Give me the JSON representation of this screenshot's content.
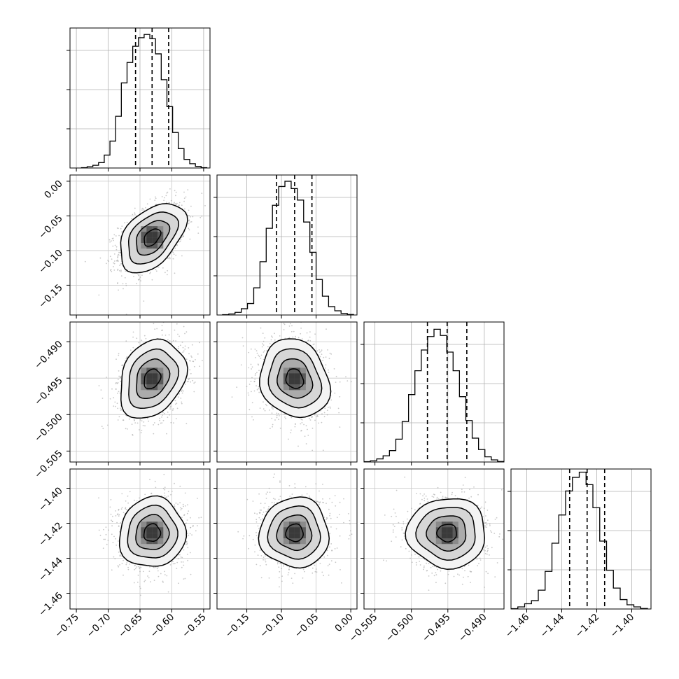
{
  "chart_data": {
    "type": "corner",
    "params": [
      {
        "range": [
          -0.76,
          -0.54
        ],
        "ticks": [
          -0.75,
          -0.7,
          -0.65,
          -0.6,
          -0.55
        ],
        "tick_labels": [
          "−0.75",
          "−0.70",
          "−0.65",
          "−0.60",
          "−0.55"
        ],
        "quantiles": [
          -0.657,
          -0.631,
          -0.605
        ]
      },
      {
        "range": [
          -0.193,
          0.009
        ],
        "ticks": [
          -0.15,
          -0.1,
          -0.05,
          0.0
        ],
        "tick_labels": [
          "−0.15",
          "−0.10",
          "−0.05",
          "0.00"
        ],
        "quantiles": [
          -0.107,
          -0.081,
          -0.056
        ]
      },
      {
        "range": [
          -0.5065,
          -0.4873
        ],
        "ticks": [
          -0.505,
          -0.5,
          -0.495,
          -0.49
        ],
        "tick_labels": [
          "−0.505",
          "−0.500",
          "−0.495",
          "−0.490"
        ],
        "quantiles": [
          -0.4978,
          -0.4951,
          -0.4924
        ]
      },
      {
        "range": [
          -1.469,
          -1.389
        ],
        "ticks": [
          -1.46,
          -1.44,
          -1.42,
          -1.4
        ],
        "tick_labels": [
          "−1.46",
          "−1.44",
          "−1.42",
          "−1.40"
        ],
        "quantiles": [
          -1.4355,
          -1.4255,
          -1.4155
        ]
      }
    ],
    "histograms": [
      {
        "edges_range": [
          -0.742,
          -0.545
        ],
        "counts": [
          0.3,
          1.2,
          2.5,
          5.0,
          12.0,
          25.0,
          48.0,
          79.0,
          98.0,
          113.0,
          121.0,
          124.0,
          120.0,
          106.0,
          82.0,
          57.0,
          33.0,
          18.0,
          8.0,
          4.0,
          1.5,
          0.3
        ],
        "ymax": 130
      },
      {
        "edges_range": [
          -0.185,
          0.004
        ],
        "counts": [
          0.3,
          1.0,
          2.5,
          6.0,
          11.0,
          26.0,
          51.0,
          83.0,
          105.0,
          123.0,
          128.0,
          121.0,
          110.0,
          89.0,
          60.0,
          34.0,
          18.0,
          8.0,
          4.0,
          1.5,
          0.5
        ],
        "ymax": 134
      },
      {
        "edges_range": [
          -0.5065,
          -0.4873
        ],
        "counts": [
          0.3,
          1.2,
          3.0,
          6.0,
          11.0,
          22.0,
          39.0,
          65.0,
          88.0,
          108.0,
          121.0,
          128.0,
          122.0,
          106.0,
          88.0,
          63.0,
          40.0,
          23.0,
          12.0,
          5.0,
          2.0,
          0.5
        ],
        "ymax": 135
      },
      {
        "edges_range": [
          -1.469,
          -1.391
        ],
        "counts": [
          0.3,
          2.0,
          5.0,
          8.0,
          18.0,
          36.0,
          63.0,
          90.0,
          113.0,
          126.0,
          131.0,
          119.0,
          97.0,
          65.0,
          37.0,
          20.0,
          9.0,
          4.0,
          2.0,
          0.5
        ],
        "ymax": 134
      }
    ],
    "correlations": [
      [
        1,
        0.45,
        0.25,
        0.05
      ],
      [
        0.45,
        1,
        -0.15,
        0.0
      ],
      [
        0.25,
        -0.15,
        1,
        0.0
      ],
      [
        0.05,
        0.0,
        0.0,
        1
      ]
    ],
    "means": [
      -0.631,
      -0.081,
      -0.4951,
      -1.4255
    ],
    "stds": [
      0.026,
      0.025,
      0.0027,
      0.01
    ],
    "contour_levels_sigma": [
      0.5,
      1.0,
      1.5,
      2.0
    ],
    "grid": true,
    "quantile_line_style": "dashed"
  }
}
